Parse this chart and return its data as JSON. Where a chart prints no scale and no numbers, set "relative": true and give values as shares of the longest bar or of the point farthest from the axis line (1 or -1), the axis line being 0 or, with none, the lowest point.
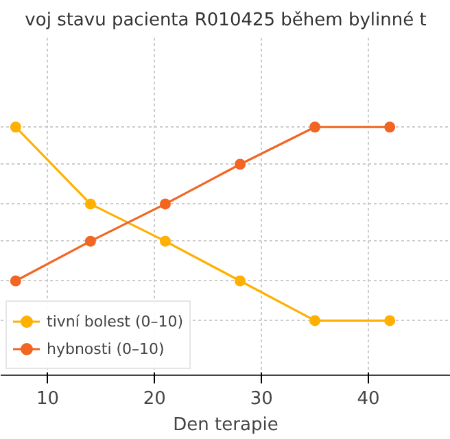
{
  "chart_data": {
    "type": "line",
    "title": "voj stavu pacienta R010425 během bylinné t",
    "xlabel": "Den terapie",
    "x": [
      7,
      14,
      21,
      28,
      35,
      42
    ],
    "xlim": [
      5.6,
      47.7
    ],
    "xticks": [
      10,
      20,
      30,
      40
    ],
    "relative": true,
    "series": [
      {
        "name": "tivní bolest (0–10)",
        "color": "#ffb000",
        "values": [
          1.0,
          0.69,
          0.54,
          0.38,
          0.22,
          0.22
        ]
      },
      {
        "name": "hybnosti (0–10)",
        "color": "#f26522",
        "values": [
          0.38,
          0.54,
          0.69,
          0.85,
          1.0,
          1.0
        ]
      }
    ],
    "grid": true,
    "legend": "bottom left",
    "marker": "circle",
    "line_style": "solid"
  }
}
